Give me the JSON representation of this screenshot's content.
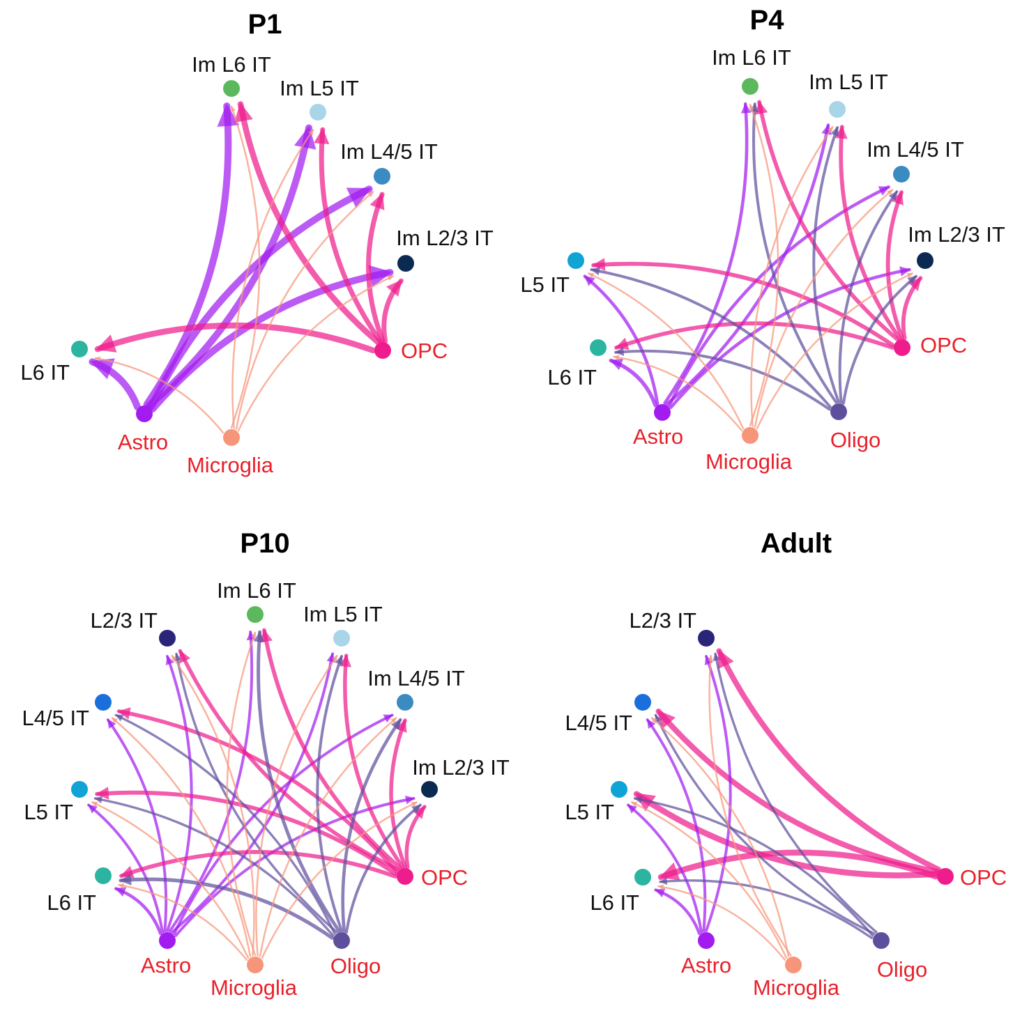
{
  "colors": {
    "Astro": "#a21cf0",
    "Microglia": "#f6957a",
    "OPC": "#ee1c8c",
    "Oligo": "#5e4f9c",
    "L6 IT": "#2bb5a0",
    "L5 IT": "#0fa3d6",
    "L4/5 IT": "#1a6fdc",
    "L2/3 IT": "#2a2578",
    "Im L6 IT": "#5cb85c",
    "Im L5 IT": "#a8d5e8",
    "Im L4/5 IT": "#3a8bc1",
    "Im L2/3 IT": "#0b2a52",
    "source_label": "#e8202a",
    "target_label": "#111111"
  },
  "sources": [
    "Astro",
    "Microglia",
    "OPC",
    "Oligo"
  ],
  "panels": [
    {
      "title": "P1",
      "nodes": [
        "Im L6 IT",
        "Im L5 IT",
        "Im L4/5 IT",
        "Im L2/3 IT",
        "OPC",
        "Microglia",
        "Astro",
        "L6 IT"
      ],
      "edges": [
        {
          "source": "Astro",
          "target": "Im L6 IT",
          "weight": 3
        },
        {
          "source": "Astro",
          "target": "Im L5 IT",
          "weight": 3
        },
        {
          "source": "Astro",
          "target": "Im L4/5 IT",
          "weight": 3
        },
        {
          "source": "Astro",
          "target": "Im L2/3 IT",
          "weight": 3
        },
        {
          "source": "Astro",
          "target": "L6 IT",
          "weight": 3
        },
        {
          "source": "OPC",
          "target": "Im L6 IT",
          "weight": 2.5
        },
        {
          "source": "OPC",
          "target": "Im L5 IT",
          "weight": 2
        },
        {
          "source": "OPC",
          "target": "Im L4/5 IT",
          "weight": 2
        },
        {
          "source": "OPC",
          "target": "Im L2/3 IT",
          "weight": 2
        },
        {
          "source": "OPC",
          "target": "L6 IT",
          "weight": 2.5
        },
        {
          "source": "Microglia",
          "target": "Im L6 IT",
          "weight": 0.5
        },
        {
          "source": "Microglia",
          "target": "Im L5 IT",
          "weight": 0.5
        },
        {
          "source": "Microglia",
          "target": "Im L4/5 IT",
          "weight": 0.5
        },
        {
          "source": "Microglia",
          "target": "Im L2/3 IT",
          "weight": 0.5
        },
        {
          "source": "Microglia",
          "target": "L6 IT",
          "weight": 0.5
        }
      ]
    },
    {
      "title": "P4",
      "nodes": [
        "Im L6 IT",
        "Im L5 IT",
        "Im L4/5 IT",
        "Im L2/3 IT",
        "OPC",
        "Oligo",
        "Microglia",
        "Astro",
        "L6 IT",
        "L5 IT"
      ],
      "edges": [
        {
          "source": "Astro",
          "target": "Im L6 IT",
          "weight": 1.2
        },
        {
          "source": "Astro",
          "target": "Im L5 IT",
          "weight": 1.2
        },
        {
          "source": "Astro",
          "target": "Im L4/5 IT",
          "weight": 1.2
        },
        {
          "source": "Astro",
          "target": "Im L2/3 IT",
          "weight": 1.2
        },
        {
          "source": "Astro",
          "target": "L6 IT",
          "weight": 1.5
        },
        {
          "source": "Astro",
          "target": "L5 IT",
          "weight": 1.2
        },
        {
          "source": "OPC",
          "target": "Im L6 IT",
          "weight": 1.6
        },
        {
          "source": "OPC",
          "target": "Im L5 IT",
          "weight": 1.6
        },
        {
          "source": "OPC",
          "target": "Im L4/5 IT",
          "weight": 1.6
        },
        {
          "source": "OPC",
          "target": "Im L2/3 IT",
          "weight": 1.6
        },
        {
          "source": "OPC",
          "target": "L6 IT",
          "weight": 1.6
        },
        {
          "source": "OPC",
          "target": "L5 IT",
          "weight": 1.6
        },
        {
          "source": "Oligo",
          "target": "Im L6 IT",
          "weight": 1
        },
        {
          "source": "Oligo",
          "target": "Im L5 IT",
          "weight": 1
        },
        {
          "source": "Oligo",
          "target": "Im L4/5 IT",
          "weight": 1
        },
        {
          "source": "Oligo",
          "target": "Im L2/3 IT",
          "weight": 1
        },
        {
          "source": "Oligo",
          "target": "L6 IT",
          "weight": 1
        },
        {
          "source": "Oligo",
          "target": "L5 IT",
          "weight": 1
        },
        {
          "source": "Microglia",
          "target": "Im L6 IT",
          "weight": 0.5
        },
        {
          "source": "Microglia",
          "target": "Im L5 IT",
          "weight": 0.5
        },
        {
          "source": "Microglia",
          "target": "Im L4/5 IT",
          "weight": 0.5
        },
        {
          "source": "Microglia",
          "target": "Im L2/3 IT",
          "weight": 0.5
        },
        {
          "source": "Microglia",
          "target": "L6 IT",
          "weight": 0.5
        },
        {
          "source": "Microglia",
          "target": "L5 IT",
          "weight": 0.5
        }
      ]
    },
    {
      "title": "P10",
      "nodes": [
        "Im L6 IT",
        "Im L5 IT",
        "Im L4/5 IT",
        "Im L2/3 IT",
        "OPC",
        "Oligo",
        "Microglia",
        "Astro",
        "L6 IT",
        "L5 IT",
        "L4/5 IT",
        "L2/3 IT"
      ],
      "edges": [
        {
          "source": "Astro",
          "target": "Im L6 IT",
          "weight": 1
        },
        {
          "source": "Astro",
          "target": "Im L5 IT",
          "weight": 1
        },
        {
          "source": "Astro",
          "target": "Im L4/5 IT",
          "weight": 1
        },
        {
          "source": "Astro",
          "target": "Im L2/3 IT",
          "weight": 1
        },
        {
          "source": "Astro",
          "target": "L6 IT",
          "weight": 1.2
        },
        {
          "source": "Astro",
          "target": "L5 IT",
          "weight": 1
        },
        {
          "source": "Astro",
          "target": "L4/5 IT",
          "weight": 1
        },
        {
          "source": "Astro",
          "target": "L2/3 IT",
          "weight": 1
        },
        {
          "source": "OPC",
          "target": "Im L6 IT",
          "weight": 1.6
        },
        {
          "source": "OPC",
          "target": "Im L5 IT",
          "weight": 1.5
        },
        {
          "source": "OPC",
          "target": "Im L4/5 IT",
          "weight": 1.5
        },
        {
          "source": "OPC",
          "target": "Im L2/3 IT",
          "weight": 1.5
        },
        {
          "source": "OPC",
          "target": "L6 IT",
          "weight": 1.6
        },
        {
          "source": "OPC",
          "target": "L5 IT",
          "weight": 1.6
        },
        {
          "source": "OPC",
          "target": "L4/5 IT",
          "weight": 1.5
        },
        {
          "source": "OPC",
          "target": "L2/3 IT",
          "weight": 1.5
        },
        {
          "source": "Oligo",
          "target": "Im L6 IT",
          "weight": 1.3
        },
        {
          "source": "Oligo",
          "target": "Im L5 IT",
          "weight": 1
        },
        {
          "source": "Oligo",
          "target": "Im L4/5 IT",
          "weight": 1.2
        },
        {
          "source": "Oligo",
          "target": "Im L2/3 IT",
          "weight": 1
        },
        {
          "source": "Oligo",
          "target": "L6 IT",
          "weight": 1.4
        },
        {
          "source": "Oligo",
          "target": "L5 IT",
          "weight": 0.8
        },
        {
          "source": "Oligo",
          "target": "L4/5 IT",
          "weight": 0.8
        },
        {
          "source": "Oligo",
          "target": "L2/3 IT",
          "weight": 0.8
        },
        {
          "source": "Microglia",
          "target": "Im L6 IT",
          "weight": 0.5
        },
        {
          "source": "Microglia",
          "target": "Im L5 IT",
          "weight": 0.5
        },
        {
          "source": "Microglia",
          "target": "Im L4/5 IT",
          "weight": 0.5
        },
        {
          "source": "Microglia",
          "target": "Im L2/3 IT",
          "weight": 0.5
        },
        {
          "source": "Microglia",
          "target": "L6 IT",
          "weight": 0.5
        },
        {
          "source": "Microglia",
          "target": "L5 IT",
          "weight": 0.5
        },
        {
          "source": "Microglia",
          "target": "L4/5 IT",
          "weight": 0.5
        },
        {
          "source": "Microglia",
          "target": "L2/3 IT",
          "weight": 0.5
        }
      ]
    },
    {
      "title": "Adult",
      "nodes": [
        "OPC",
        "Oligo",
        "Microglia",
        "Astro",
        "L6 IT",
        "L5 IT",
        "L4/5 IT",
        "L2/3 IT"
      ],
      "edges": [
        {
          "source": "OPC",
          "target": "L6 IT",
          "weight": 2.5
        },
        {
          "source": "OPC",
          "target": "L5 IT",
          "weight": 2.5
        },
        {
          "source": "OPC",
          "target": "L4/5 IT",
          "weight": 2.3
        },
        {
          "source": "OPC",
          "target": "L2/3 IT",
          "weight": 2.3
        },
        {
          "source": "Astro",
          "target": "L6 IT",
          "weight": 1.1
        },
        {
          "source": "Astro",
          "target": "L5 IT",
          "weight": 1
        },
        {
          "source": "Astro",
          "target": "L4/5 IT",
          "weight": 1
        },
        {
          "source": "Astro",
          "target": "L2/3 IT",
          "weight": 1
        },
        {
          "source": "Oligo",
          "target": "L6 IT",
          "weight": 0.8
        },
        {
          "source": "Oligo",
          "target": "L5 IT",
          "weight": 0.8
        },
        {
          "source": "Oligo",
          "target": "L4/5 IT",
          "weight": 0.8
        },
        {
          "source": "Oligo",
          "target": "L2/3 IT",
          "weight": 0.8
        },
        {
          "source": "Microglia",
          "target": "L6 IT",
          "weight": 0.5
        },
        {
          "source": "Microglia",
          "target": "L5 IT",
          "weight": 0.5
        },
        {
          "source": "Microglia",
          "target": "L4/5 IT",
          "weight": 0.5
        },
        {
          "source": "Microglia",
          "target": "L2/3 IT",
          "weight": 0.5
        }
      ]
    }
  ]
}
